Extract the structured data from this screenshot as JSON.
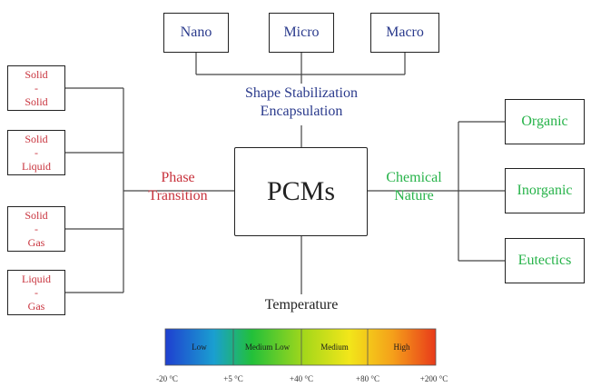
{
  "center": {
    "label": "PCMs"
  },
  "shape": {
    "heading_line1": "Shape Stabilization",
    "heading_line2": "Encapsulation",
    "items": [
      "Nano",
      "Micro",
      "Macro"
    ]
  },
  "phase": {
    "heading_line1": "Phase",
    "heading_line2": "Transition",
    "items": [
      {
        "top": "Solid",
        "mid": "-",
        "bottom": "Solid"
      },
      {
        "top": "Solid",
        "mid": "-",
        "bottom": "Liquid"
      },
      {
        "top": "Solid",
        "mid": "-",
        "bottom": "Gas"
      },
      {
        "top": "Liquid",
        "mid": "-",
        "bottom": "Gas"
      }
    ]
  },
  "chemical": {
    "heading_line1": "Chemical",
    "heading_line2": "Nature",
    "items": [
      "Organic",
      "Inorganic",
      "Eutectics"
    ]
  },
  "temperature": {
    "heading": "Temperature",
    "ranges": [
      "Low",
      "Medium Low",
      "Medium",
      "High"
    ],
    "ticks": [
      "-20 °C",
      "+5 °C",
      "+40 °C",
      "+80 °C",
      "+200 °C"
    ]
  },
  "colors": {
    "phase": "#c8323c",
    "shape": "#2a3a8c",
    "chemical": "#27b34a",
    "gradient": [
      "#1f3fd0",
      "#1a9fd0",
      "#22c03a",
      "#a8d81a",
      "#f2e61a",
      "#f5a01a",
      "#e83a1a"
    ]
  }
}
